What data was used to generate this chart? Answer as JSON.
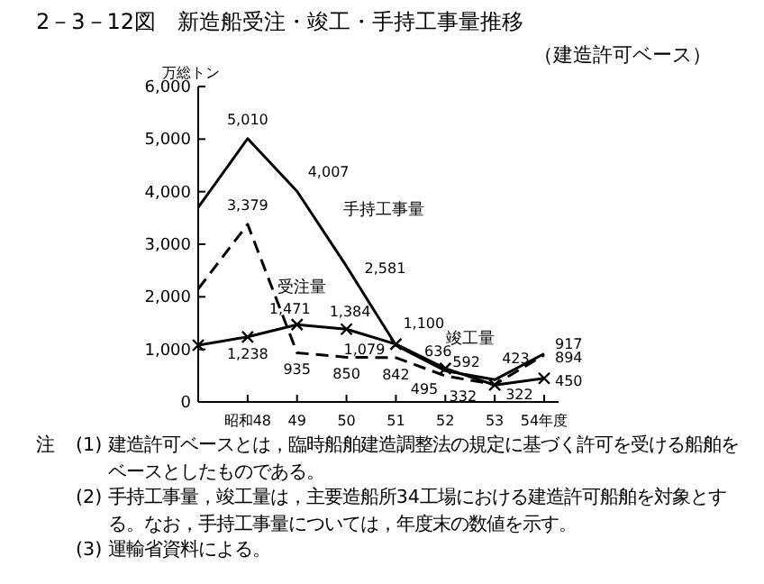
{
  "chart_data": {
    "type": "line",
    "title": "2－3－12図　新造船受注・竣工・手持工事量推移",
    "subtitle": "（建造許可ベース）",
    "ylabel": "万総トン",
    "categories": [
      null,
      "昭和48",
      "49",
      "50",
      "51",
      "52",
      "53",
      "54年度"
    ],
    "ylim": [
      0,
      6000
    ],
    "yticks": [
      0,
      {
        "value": 1000,
        "label": "1,000"
      },
      {
        "value": 2000,
        "label": "2,000"
      },
      {
        "value": 3000,
        "label": "3,000"
      },
      {
        "value": 4000,
        "label": "4,000"
      },
      {
        "value": 5000,
        "label": "5,000"
      },
      {
        "value": 6000,
        "label": "6,000"
      }
    ],
    "series": [
      {
        "name": "手持工事量",
        "color": "#000000",
        "line_style": "solid",
        "marker": "none",
        "values": [
          3700,
          5010,
          4007,
          2581,
          1079,
          592,
          423,
          917
        ],
        "value_labels": [
          null,
          "5,010",
          "4,007",
          "2,581",
          "1,079",
          "592",
          "423",
          "917"
        ]
      },
      {
        "name": "受注量",
        "color": "#000000",
        "line_style": "dashed",
        "marker": "none",
        "values": [
          2150,
          3379,
          935,
          850,
          842,
          495,
          332,
          894
        ],
        "value_labels": [
          null,
          "3,379",
          "935",
          "850",
          "842",
          "495",
          "332",
          "894"
        ]
      },
      {
        "name": "竣工量",
        "color": "#000000",
        "line_style": "solid",
        "marker": "cross",
        "values": [
          1080,
          1238,
          1471,
          1384,
          1100,
          636,
          322,
          450
        ],
        "value_labels": [
          null,
          "1,238",
          "1,471",
          "1,384",
          "1,100",
          "636",
          "322",
          "450"
        ]
      }
    ],
    "grid": false,
    "legend": false,
    "annotations": [
      "注",
      "(1) 建造許可ベースとは，臨時船舶建造調整法の規定に基づく許可を受ける船舶をベースとしたものである。",
      "(2) 手持工事量，竣工量は，主要造船所34工場における建造許可船舶を対象とする。なお，手持工事量については，年度末の数値を示す。",
      "(3) 運輸省資料による。"
    ]
  }
}
